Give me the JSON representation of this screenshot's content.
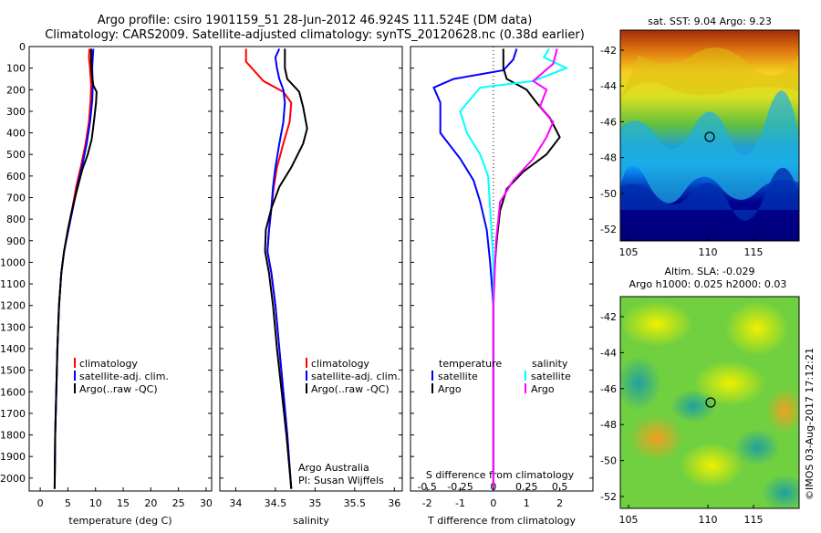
{
  "header": {
    "line1": "Argo profile: csiro 1901159_51 28-Jun-2012 46.924S 111.524E (DM data)",
    "line2": "Climatology: CARS2009. Satellite-adjusted climatology: synTS_20120628.nc (0.38d earlier)"
  },
  "colors": {
    "climatology": "#ff0000",
    "satellite": "#0000ff",
    "argo": "#000000",
    "sal_satellite": "#00ffff",
    "sal_argo": "#ff00ff"
  },
  "chart_data": [
    {
      "type": "line",
      "xlabel": "temperature (deg C)",
      "xlim": [
        -2,
        31
      ],
      "xticks": [
        0,
        5,
        10,
        15,
        20,
        25,
        30
      ],
      "ylim": [
        2060,
        0
      ],
      "yticks": [
        0,
        100,
        200,
        300,
        400,
        500,
        600,
        700,
        800,
        900,
        1000,
        1100,
        1200,
        1300,
        1400,
        1500,
        1600,
        1700,
        1800,
        1900,
        2000
      ],
      "legend": [
        "climatology",
        "satellite-adj. clim.",
        "Argo(..raw -QC)"
      ],
      "legend_placement": "middle-left",
      "series": [
        {
          "name": "climatology",
          "color": "#ff0000",
          "points": [
            [
              8.9,
              10
            ],
            [
              8.8,
              50
            ],
            [
              9.0,
              100
            ],
            [
              9.2,
              180
            ],
            [
              9.1,
              250
            ],
            [
              8.8,
              350
            ],
            [
              8.2,
              450
            ],
            [
              7.4,
              550
            ],
            [
              6.5,
              650
            ],
            [
              5.8,
              750
            ],
            [
              5.0,
              850
            ],
            [
              4.3,
              950
            ],
            [
              3.8,
              1050
            ],
            [
              3.4,
              1200
            ],
            [
              3.1,
              1400
            ],
            [
              2.9,
              1600
            ],
            [
              2.7,
              1800
            ],
            [
              2.6,
              2050
            ]
          ]
        },
        {
          "name": "satellite-adj. clim.",
          "color": "#0000ff",
          "points": [
            [
              9.6,
              10
            ],
            [
              9.5,
              50
            ],
            [
              9.4,
              100
            ],
            [
              9.5,
              180
            ],
            [
              9.4,
              250
            ],
            [
              9.0,
              350
            ],
            [
              8.4,
              450
            ],
            [
              7.6,
              550
            ],
            [
              6.7,
              650
            ],
            [
              5.9,
              750
            ],
            [
              5.1,
              850
            ],
            [
              4.3,
              950
            ],
            [
              3.8,
              1050
            ],
            [
              3.4,
              1200
            ],
            [
              3.1,
              1400
            ],
            [
              2.9,
              1600
            ],
            [
              2.7,
              1800
            ],
            [
              2.6,
              2050
            ]
          ]
        },
        {
          "name": "Argo(..raw -QC)",
          "color": "#000000",
          "points": [
            [
              9.2,
              10
            ],
            [
              9.2,
              60
            ],
            [
              9.3,
              120
            ],
            [
              9.6,
              180
            ],
            [
              10.2,
              210
            ],
            [
              10.1,
              260
            ],
            [
              9.7,
              350
            ],
            [
              9.3,
              430
            ],
            [
              8.6,
              500
            ],
            [
              7.6,
              570
            ],
            [
              6.8,
              650
            ],
            [
              5.8,
              750
            ],
            [
              5.0,
              850
            ],
            [
              4.3,
              950
            ],
            [
              3.8,
              1050
            ],
            [
              3.4,
              1200
            ],
            [
              3.1,
              1400
            ],
            [
              2.9,
              1600
            ],
            [
              2.7,
              1800
            ],
            [
              2.6,
              2050
            ]
          ]
        }
      ]
    },
    {
      "type": "line",
      "xlabel": "salinity",
      "xlim": [
        33.8,
        36.1
      ],
      "xticks": [
        34,
        34.5,
        35,
        35.5,
        36
      ],
      "xticklabels": [
        "34",
        "34.5",
        "35",
        "35.5",
        "36"
      ],
      "ylim": [
        2060,
        0
      ],
      "legend": [
        "climatology",
        "satellite-adj. clim.",
        "Argo(..raw -QC)"
      ],
      "legend_placement": "middle-right",
      "annotation": [
        "Argo Australia",
        "PI: Susan Wijffels"
      ],
      "series": [
        {
          "name": "climatology",
          "color": "#ff0000",
          "points": [
            [
              34.13,
              10
            ],
            [
              34.13,
              70
            ],
            [
              34.35,
              160
            ],
            [
              34.6,
              210
            ],
            [
              34.7,
              260
            ],
            [
              34.68,
              350
            ],
            [
              34.6,
              450
            ],
            [
              34.52,
              560
            ],
            [
              34.48,
              650
            ],
            [
              34.45,
              750
            ],
            [
              34.42,
              850
            ],
            [
              34.4,
              950
            ],
            [
              34.45,
              1050
            ],
            [
              34.5,
              1200
            ],
            [
              34.55,
              1400
            ],
            [
              34.6,
              1600
            ],
            [
              34.65,
              1800
            ],
            [
              34.7,
              2050
            ]
          ]
        },
        {
          "name": "satellite-adj. clim.",
          "color": "#0000ff",
          "points": [
            [
              34.55,
              10
            ],
            [
              34.5,
              50
            ],
            [
              34.52,
              100
            ],
            [
              34.55,
              150
            ],
            [
              34.6,
              200
            ],
            [
              34.62,
              260
            ],
            [
              34.6,
              350
            ],
            [
              34.55,
              450
            ],
            [
              34.5,
              560
            ],
            [
              34.47,
              650
            ],
            [
              34.45,
              750
            ],
            [
              34.42,
              850
            ],
            [
              34.4,
              950
            ],
            [
              34.45,
              1050
            ],
            [
              34.5,
              1200
            ],
            [
              34.55,
              1400
            ],
            [
              34.6,
              1600
            ],
            [
              34.65,
              1800
            ],
            [
              34.7,
              2050
            ]
          ]
        },
        {
          "name": "Argo(..raw -QC)",
          "color": "#000000",
          "points": [
            [
              34.62,
              10
            ],
            [
              34.62,
              100
            ],
            [
              34.65,
              150
            ],
            [
              34.8,
              210
            ],
            [
              34.85,
              280
            ],
            [
              34.9,
              380
            ],
            [
              34.85,
              450
            ],
            [
              34.7,
              560
            ],
            [
              34.55,
              650
            ],
            [
              34.45,
              750
            ],
            [
              34.38,
              850
            ],
            [
              34.37,
              950
            ],
            [
              34.42,
              1050
            ],
            [
              34.47,
              1200
            ],
            [
              34.52,
              1400
            ],
            [
              34.58,
              1600
            ],
            [
              34.64,
              1800
            ],
            [
              34.7,
              2050
            ]
          ]
        }
      ]
    },
    {
      "type": "line",
      "xlabel": "T difference from climatology",
      "xlabel2": "S difference from climatology",
      "xlim": [
        -2.5,
        3
      ],
      "xticks": [
        -2,
        -1,
        0,
        1,
        2
      ],
      "xticks2": [
        -0.5,
        -0.25,
        0,
        0.25,
        0.5
      ],
      "xticklabels2": [
        "-0.5",
        "-0.25",
        "0",
        "0.25",
        "0.5"
      ],
      "ylim": [
        2060,
        0
      ],
      "zero_line": "dotted",
      "legend_temperature": {
        "title": "temperature",
        "items": [
          "satellite",
          "Argo"
        ]
      },
      "legend_salinity": {
        "title": "salinity",
        "items": [
          "satellite",
          "Argo"
        ]
      },
      "series": [
        {
          "name": "temperature satellite",
          "color": "#0000ff",
          "points": [
            [
              0.7,
              10
            ],
            [
              0.6,
              60
            ],
            [
              0.3,
              110
            ],
            [
              -1.2,
              150
            ],
            [
              -1.8,
              190
            ],
            [
              -1.6,
              260
            ],
            [
              -1.6,
              400
            ],
            [
              -1.0,
              520
            ],
            [
              -0.6,
              620
            ],
            [
              -0.4,
              720
            ],
            [
              -0.2,
              850
            ],
            [
              -0.1,
              1000
            ],
            [
              0,
              1200
            ],
            [
              0,
              1500
            ],
            [
              0,
              2050
            ]
          ]
        },
        {
          "name": "temperature Argo",
          "color": "#000000",
          "points": [
            [
              0.3,
              10
            ],
            [
              0.3,
              100
            ],
            [
              0.4,
              150
            ],
            [
              1.0,
              200
            ],
            [
              1.3,
              260
            ],
            [
              1.7,
              330
            ],
            [
              2.0,
              420
            ],
            [
              1.6,
              500
            ],
            [
              0.9,
              580
            ],
            [
              0.4,
              660
            ],
            [
              0.2,
              760
            ],
            [
              0.1,
              900
            ],
            [
              0,
              1100
            ],
            [
              0,
              1500
            ],
            [
              0,
              2050
            ]
          ]
        },
        {
          "name": "salinity satellite",
          "color": "#00ffff",
          "points": [
            [
              0.42,
              10
            ],
            [
              0.38,
              50
            ],
            [
              0.55,
              100
            ],
            [
              0.3,
              160
            ],
            [
              -0.1,
              190
            ],
            [
              -0.25,
              300
            ],
            [
              -0.2,
              400
            ],
            [
              -0.1,
              500
            ],
            [
              -0.04,
              600
            ],
            [
              -0.02,
              800
            ],
            [
              0,
              1000
            ],
            [
              0,
              1500
            ],
            [
              0,
              2050
            ]
          ]
        },
        {
          "name": "salinity Argo",
          "color": "#ff00ff",
          "points": [
            [
              0.48,
              10
            ],
            [
              0.45,
              80
            ],
            [
              0.3,
              160
            ],
            [
              0.4,
              200
            ],
            [
              0.35,
              280
            ],
            [
              0.45,
              350
            ],
            [
              0.4,
              420
            ],
            [
              0.3,
              520
            ],
            [
              0.15,
              620
            ],
            [
              0.05,
              720
            ],
            [
              0.02,
              900
            ],
            [
              0,
              1200
            ],
            [
              0,
              1500
            ],
            [
              0,
              2050
            ]
          ]
        }
      ]
    }
  ],
  "maps": {
    "sst": {
      "title": "sat. SST: 9.04 Argo: 9.23",
      "yticks": [
        "-42",
        "-44",
        "-46",
        "-48",
        "-50",
        "-52"
      ],
      "xticks": [
        "105",
        "110",
        "115"
      ]
    },
    "sla": {
      "title1": "Altim. SLA: -0.029",
      "title2": "Argo h1000: 0.025 h2000: 0.03",
      "yticks": [
        "-42",
        "-44",
        "-46",
        "-48",
        "-50",
        "-52"
      ],
      "xticks": [
        "105",
        "110",
        "115"
      ]
    }
  },
  "watermark": "©IMOS 03-Aug-2017 17:12:21"
}
